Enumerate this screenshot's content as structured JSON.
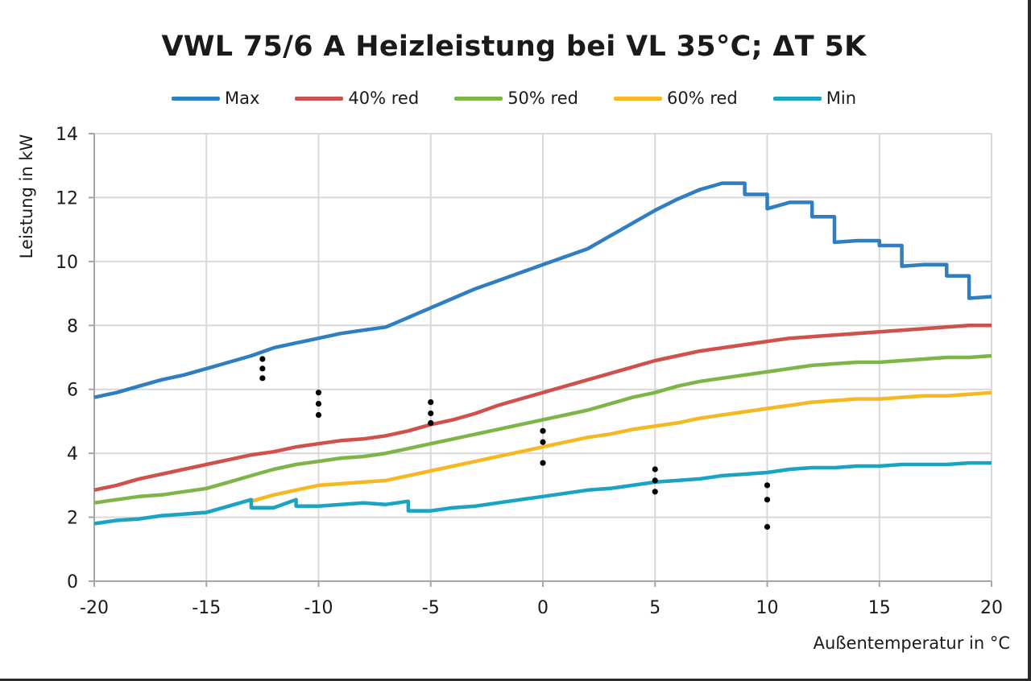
{
  "chart_data": {
    "type": "line",
    "title": "VWL 75/6 A Heizleistung bei VL 35°C; ΔT 5K",
    "xlabel": "Außentemperatur in °C",
    "ylabel": "Leistung in kW",
    "xlim": [
      -20,
      20
    ],
    "ylim": [
      0,
      14
    ],
    "xticks": [
      -20,
      -15,
      -10,
      -5,
      0,
      5,
      10,
      15,
      20
    ],
    "yticks": [
      0,
      2,
      4,
      6,
      8,
      10,
      12,
      14
    ],
    "xtick_labels": [
      "-20",
      "-15",
      "-10",
      "-5",
      "0",
      "5",
      "10",
      "15",
      "20"
    ],
    "ytick_labels": [
      "0",
      "2",
      "4",
      "6",
      "8",
      "10",
      "12",
      "14"
    ],
    "grid": true,
    "legend_position": "top",
    "series": [
      {
        "name": "Max",
        "color": "#2e7ec1",
        "points": [
          [
            -20,
            5.75
          ],
          [
            -19,
            5.9
          ],
          [
            -18,
            6.1
          ],
          [
            -17,
            6.3
          ],
          [
            -16,
            6.45
          ],
          [
            -15,
            6.65
          ],
          [
            -14,
            6.85
          ],
          [
            -13,
            7.05
          ],
          [
            -12,
            7.3
          ],
          [
            -11,
            7.45
          ],
          [
            -10,
            7.6
          ],
          [
            -9,
            7.75
          ],
          [
            -8,
            7.85
          ],
          [
            -7,
            7.95
          ],
          [
            -6,
            8.25
          ],
          [
            -5,
            8.55
          ],
          [
            -4,
            8.85
          ],
          [
            -3,
            9.15
          ],
          [
            -2,
            9.4
          ],
          [
            -1,
            9.65
          ],
          [
            0,
            9.9
          ],
          [
            1,
            10.15
          ],
          [
            2,
            10.4
          ],
          [
            3,
            10.8
          ],
          [
            4,
            11.2
          ],
          [
            5,
            11.6
          ],
          [
            6,
            11.95
          ],
          [
            7,
            12.25
          ],
          [
            8,
            12.45
          ],
          [
            9,
            12.45
          ],
          [
            9,
            12.1
          ],
          [
            10,
            12.1
          ],
          [
            10,
            11.65
          ],
          [
            11,
            11.85
          ],
          [
            12,
            11.85
          ],
          [
            12,
            11.4
          ],
          [
            13,
            11.4
          ],
          [
            13,
            10.6
          ],
          [
            14,
            10.65
          ],
          [
            15,
            10.65
          ],
          [
            15,
            10.5
          ],
          [
            16,
            10.5
          ],
          [
            16,
            9.85
          ],
          [
            17,
            9.9
          ],
          [
            18,
            9.9
          ],
          [
            18,
            9.55
          ],
          [
            19,
            9.55
          ],
          [
            19,
            8.85
          ],
          [
            20,
            8.9
          ]
        ]
      },
      {
        "name": "40% red",
        "color": "#d0504c",
        "points": [
          [
            -20,
            2.85
          ],
          [
            -19,
            3.0
          ],
          [
            -18,
            3.2
          ],
          [
            -17,
            3.35
          ],
          [
            -16,
            3.5
          ],
          [
            -15,
            3.65
          ],
          [
            -14,
            3.8
          ],
          [
            -13,
            3.95
          ],
          [
            -12,
            4.05
          ],
          [
            -11,
            4.2
          ],
          [
            -10,
            4.3
          ],
          [
            -9,
            4.4
          ],
          [
            -8,
            4.45
          ],
          [
            -7,
            4.55
          ],
          [
            -6,
            4.7
          ],
          [
            -5,
            4.9
          ],
          [
            -4,
            5.05
          ],
          [
            -3,
            5.25
          ],
          [
            -2,
            5.5
          ],
          [
            -1,
            5.7
          ],
          [
            0,
            5.9
          ],
          [
            1,
            6.1
          ],
          [
            2,
            6.3
          ],
          [
            3,
            6.5
          ],
          [
            4,
            6.7
          ],
          [
            5,
            6.9
          ],
          [
            6,
            7.05
          ],
          [
            7,
            7.2
          ],
          [
            8,
            7.3
          ],
          [
            9,
            7.4
          ],
          [
            10,
            7.5
          ],
          [
            11,
            7.6
          ],
          [
            12,
            7.65
          ],
          [
            13,
            7.7
          ],
          [
            14,
            7.75
          ],
          [
            15,
            7.8
          ],
          [
            16,
            7.85
          ],
          [
            17,
            7.9
          ],
          [
            18,
            7.95
          ],
          [
            19,
            8.0
          ],
          [
            20,
            8.0
          ]
        ]
      },
      {
        "name": "50% red",
        "color": "#7fb547",
        "points": [
          [
            -20,
            2.45
          ],
          [
            -19,
            2.55
          ],
          [
            -18,
            2.65
          ],
          [
            -17,
            2.7
          ],
          [
            -16,
            2.8
          ],
          [
            -15,
            2.9
          ],
          [
            -14,
            3.1
          ],
          [
            -13,
            3.3
          ],
          [
            -12,
            3.5
          ],
          [
            -11,
            3.65
          ],
          [
            -10,
            3.75
          ],
          [
            -9,
            3.85
          ],
          [
            -8,
            3.9
          ],
          [
            -7,
            4.0
          ],
          [
            -6,
            4.15
          ],
          [
            -5,
            4.3
          ],
          [
            -4,
            4.45
          ],
          [
            -3,
            4.6
          ],
          [
            -2,
            4.75
          ],
          [
            -1,
            4.9
          ],
          [
            0,
            5.05
          ],
          [
            1,
            5.2
          ],
          [
            2,
            5.35
          ],
          [
            3,
            5.55
          ],
          [
            4,
            5.75
          ],
          [
            5,
            5.9
          ],
          [
            6,
            6.1
          ],
          [
            7,
            6.25
          ],
          [
            8,
            6.35
          ],
          [
            9,
            6.45
          ],
          [
            10,
            6.55
          ],
          [
            11,
            6.65
          ],
          [
            12,
            6.75
          ],
          [
            13,
            6.8
          ],
          [
            14,
            6.85
          ],
          [
            15,
            6.85
          ],
          [
            16,
            6.9
          ],
          [
            17,
            6.95
          ],
          [
            18,
            7.0
          ],
          [
            19,
            7.0
          ],
          [
            20,
            7.05
          ]
        ]
      },
      {
        "name": "60% red",
        "color": "#f5b822",
        "points": [
          [
            -13,
            2.5
          ],
          [
            -12,
            2.7
          ],
          [
            -11,
            2.85
          ],
          [
            -10,
            3.0
          ],
          [
            -9,
            3.05
          ],
          [
            -8,
            3.1
          ],
          [
            -7,
            3.15
          ],
          [
            -6,
            3.3
          ],
          [
            -5,
            3.45
          ],
          [
            -4,
            3.6
          ],
          [
            -3,
            3.75
          ],
          [
            -2,
            3.9
          ],
          [
            -1,
            4.05
          ],
          [
            0,
            4.2
          ],
          [
            1,
            4.35
          ],
          [
            2,
            4.5
          ],
          [
            3,
            4.6
          ],
          [
            4,
            4.75
          ],
          [
            5,
            4.85
          ],
          [
            6,
            4.95
          ],
          [
            7,
            5.1
          ],
          [
            8,
            5.2
          ],
          [
            9,
            5.3
          ],
          [
            10,
            5.4
          ],
          [
            11,
            5.5
          ],
          [
            12,
            5.6
          ],
          [
            13,
            5.65
          ],
          [
            14,
            5.7
          ],
          [
            15,
            5.7
          ],
          [
            16,
            5.75
          ],
          [
            17,
            5.8
          ],
          [
            18,
            5.8
          ],
          [
            19,
            5.85
          ],
          [
            20,
            5.9
          ]
        ]
      },
      {
        "name": "Min",
        "color": "#1aa4c2",
        "points": [
          [
            -20,
            1.8
          ],
          [
            -19,
            1.9
          ],
          [
            -18,
            1.95
          ],
          [
            -17,
            2.05
          ],
          [
            -16,
            2.1
          ],
          [
            -15,
            2.15
          ],
          [
            -14,
            2.35
          ],
          [
            -13,
            2.55
          ],
          [
            -13,
            2.3
          ],
          [
            -12,
            2.3
          ],
          [
            -11,
            2.55
          ],
          [
            -11,
            2.35
          ],
          [
            -10,
            2.35
          ],
          [
            -9,
            2.4
          ],
          [
            -8,
            2.45
          ],
          [
            -7,
            2.4
          ],
          [
            -6,
            2.5
          ],
          [
            -6,
            2.2
          ],
          [
            -5,
            2.2
          ],
          [
            -4,
            2.3
          ],
          [
            -3,
            2.35
          ],
          [
            -2,
            2.45
          ],
          [
            -1,
            2.55
          ],
          [
            0,
            2.65
          ],
          [
            1,
            2.75
          ],
          [
            2,
            2.85
          ],
          [
            3,
            2.9
          ],
          [
            4,
            3.0
          ],
          [
            5,
            3.1
          ],
          [
            6,
            3.15
          ],
          [
            7,
            3.2
          ],
          [
            8,
            3.3
          ],
          [
            9,
            3.35
          ],
          [
            10,
            3.4
          ],
          [
            11,
            3.5
          ],
          [
            12,
            3.55
          ],
          [
            13,
            3.55
          ],
          [
            14,
            3.6
          ],
          [
            15,
            3.6
          ],
          [
            16,
            3.65
          ],
          [
            17,
            3.65
          ],
          [
            18,
            3.65
          ],
          [
            19,
            3.7
          ],
          [
            20,
            3.7
          ]
        ]
      }
    ],
    "dot_markers": [
      {
        "x": -12.5,
        "values": [
          6.95,
          6.65,
          6.35
        ]
      },
      {
        "x": -10,
        "values": [
          5.9,
          5.55,
          5.2
        ]
      },
      {
        "x": -5,
        "values": [
          5.6,
          5.25,
          4.95
        ]
      },
      {
        "x": 0,
        "values": [
          4.7,
          4.35,
          3.7
        ]
      },
      {
        "x": 5,
        "values": [
          3.5,
          3.15,
          2.8
        ]
      },
      {
        "x": 10,
        "values": [
          3.0,
          2.55,
          1.7
        ]
      }
    ],
    "dot_color": "#000000"
  }
}
